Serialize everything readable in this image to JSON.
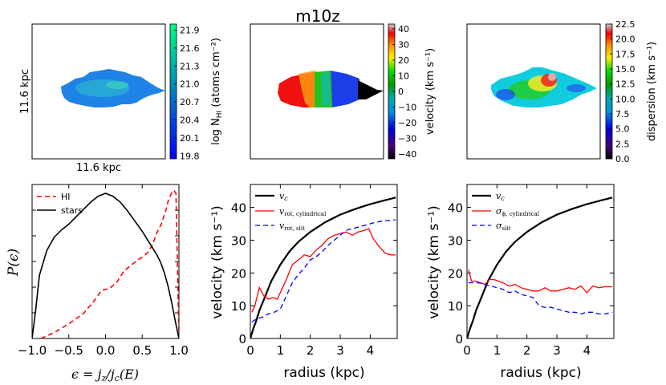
{
  "title": "m10z",
  "colors": {
    "hi_dashed": "#ff0000",
    "stars_line": "#000000",
    "vc_line": "#000000",
    "cyl_line": "#ff0000",
    "slit_line": "#0000ff"
  },
  "maps": [
    {
      "id": "column-density-map",
      "scale_x_label": "11.6 kpc",
      "scale_y_label": "11.6 kpc",
      "colorbar": {
        "label": "log N",
        "label_sub": "HI",
        "label_unit": " (atoms cm⁻²)",
        "colormap": "winter",
        "ticks": [
          "21.9",
          "21.6",
          "21.3",
          "21.0",
          "20.7",
          "20.4",
          "20.1",
          "19.8"
        ],
        "range": [
          19.75,
          22.0
        ]
      }
    },
    {
      "id": "velocity-map",
      "colorbar": {
        "label": "velocity (km s⁻¹)",
        "colormap": "spectral",
        "ticks": [
          "40",
          "30",
          "20",
          "10",
          "0",
          "−10",
          "−20",
          "−30",
          "−40"
        ],
        "range": [
          -43,
          43
        ]
      }
    },
    {
      "id": "dispersion-map",
      "colorbar": {
        "label": "dispersion (km s⁻¹)",
        "colormap": "spectral",
        "ticks": [
          "22.5",
          "20.0",
          "17.5",
          "15.0",
          "12.5",
          "10.0",
          "7.5",
          "5.0",
          "2.5",
          "0.0"
        ],
        "range": [
          0,
          22.5
        ]
      }
    }
  ],
  "chart_data": [
    {
      "type": "line",
      "id": "circularity-distribution",
      "xlabel": "ϵ = j_z/j_c(E)",
      "ylabel": "P(ϵ)",
      "xlim": [
        -1.0,
        1.0
      ],
      "ylim": [
        0,
        1.05
      ],
      "xticks": [
        "−1.0",
        "−0.5",
        "0.0",
        "0.5",
        "1.0"
      ],
      "legend_position": "top-left",
      "series": [
        {
          "name": "HI",
          "style": "dashed",
          "color": "#ff0000",
          "x": [
            -0.88,
            -0.7,
            -0.5,
            -0.3,
            -0.15,
            -0.05,
            0.05,
            0.15,
            0.25,
            0.35,
            0.45,
            0.52,
            0.58,
            0.64,
            0.7,
            0.76,
            0.82,
            0.86,
            0.9,
            0.93,
            0.96,
            1.0
          ],
          "values": [
            0.0,
            0.04,
            0.1,
            0.17,
            0.26,
            0.33,
            0.34,
            0.38,
            0.46,
            0.5,
            0.54,
            0.56,
            0.59,
            0.64,
            0.72,
            0.78,
            0.87,
            0.95,
            0.99,
            1.01,
            0.99,
            0.0
          ]
        },
        {
          "name": "stars",
          "style": "solid",
          "color": "#000000",
          "x": [
            -1.0,
            -0.95,
            -0.9,
            -0.8,
            -0.7,
            -0.6,
            -0.5,
            -0.4,
            -0.3,
            -0.2,
            -0.1,
            0.0,
            0.1,
            0.2,
            0.3,
            0.4,
            0.5,
            0.6,
            0.7,
            0.75,
            0.8,
            0.85,
            0.9,
            0.95,
            1.0
          ],
          "values": [
            0.0,
            0.2,
            0.43,
            0.6,
            0.69,
            0.74,
            0.78,
            0.83,
            0.88,
            0.93,
            0.97,
            0.99,
            0.97,
            0.93,
            0.87,
            0.8,
            0.73,
            0.65,
            0.57,
            0.52,
            0.45,
            0.36,
            0.25,
            0.12,
            0.0
          ]
        }
      ]
    },
    {
      "type": "line",
      "id": "rotation-curve",
      "xlabel": "radius (kpc)",
      "ylabel": "velocity (km s⁻¹)",
      "xlim": [
        0,
        4.9
      ],
      "ylim": [
        0,
        47
      ],
      "xticks": [
        "0",
        "1",
        "2",
        "3",
        "4"
      ],
      "yticks": [
        "0",
        "10",
        "20",
        "30",
        "40"
      ],
      "legend_position": "top-left",
      "series": [
        {
          "name": "v_c",
          "style": "solid",
          "color": "#000000",
          "x": [
            0,
            0.1,
            0.2,
            0.3,
            0.5,
            0.7,
            1.0,
            1.3,
            1.6,
            2.0,
            2.5,
            3.0,
            3.5,
            4.0,
            4.5,
            4.85
          ],
          "values": [
            0,
            3,
            5.5,
            8.5,
            13,
            17.5,
            22.5,
            26.5,
            29.5,
            32.5,
            35.5,
            37.8,
            39.5,
            41,
            42.2,
            43
          ]
        },
        {
          "name": "v_rot, cylindrical",
          "style": "solid",
          "color": "#ff0000",
          "x": [
            0.05,
            0.15,
            0.3,
            0.45,
            0.6,
            0.75,
            0.9,
            1.05,
            1.2,
            1.4,
            1.6,
            1.8,
            2.0,
            2.2,
            2.4,
            2.6,
            2.8,
            3.0,
            3.2,
            3.4,
            3.6,
            3.8,
            3.95,
            4.1,
            4.3,
            4.5,
            4.7,
            4.85
          ],
          "values": [
            8,
            10,
            15.5,
            13,
            12,
            12.5,
            12,
            15,
            18,
            22.5,
            24,
            25.5,
            25,
            27,
            28.5,
            30.5,
            31.5,
            32,
            32.5,
            31.5,
            32.5,
            33,
            33.5,
            30.5,
            28,
            26,
            25.5,
            25.5
          ]
        },
        {
          "name": "v_rot, slit",
          "style": "dashed",
          "color": "#0000ff",
          "x": [
            0.05,
            0.2,
            0.4,
            0.6,
            0.8,
            1.0,
            1.2,
            1.4,
            1.6,
            1.8,
            2.0,
            2.2,
            2.4,
            2.6,
            2.8,
            3.0,
            3.2,
            3.4,
            3.6,
            3.8,
            4.0,
            4.2,
            4.4,
            4.6,
            4.85
          ],
          "values": [
            5,
            6,
            6.5,
            7.5,
            8,
            9,
            13,
            17,
            19.5,
            21.5,
            24,
            25,
            26.5,
            28.5,
            30,
            31.5,
            33,
            33.5,
            34,
            34.5,
            35,
            35.5,
            35.8,
            36,
            36.2
          ]
        }
      ]
    },
    {
      "type": "line",
      "id": "dispersion-profile",
      "xlabel": "radius (kpc)",
      "ylabel": "velocity (km s⁻¹)",
      "xlim": [
        0,
        4.9
      ],
      "ylim": [
        0,
        47
      ],
      "xticks": [
        "0",
        "1",
        "2",
        "3",
        "4"
      ],
      "yticks": [
        "0",
        "10",
        "20",
        "30",
        "40"
      ],
      "legend_position": "top-left",
      "series": [
        {
          "name": "v_c",
          "style": "solid",
          "color": "#000000",
          "x": [
            0,
            0.1,
            0.2,
            0.3,
            0.5,
            0.7,
            1.0,
            1.3,
            1.6,
            2.0,
            2.5,
            3.0,
            3.5,
            4.0,
            4.5,
            4.85
          ],
          "values": [
            0,
            3,
            5.5,
            8.5,
            13,
            17.5,
            22.5,
            26.5,
            29.5,
            32.5,
            35.5,
            37.8,
            39.5,
            41,
            42.2,
            43
          ]
        },
        {
          "name": "σ_ϕ, cylindrical",
          "style": "solid",
          "color": "#ff0000",
          "x": [
            0.05,
            0.15,
            0.3,
            0.45,
            0.6,
            0.75,
            0.9,
            1.05,
            1.2,
            1.4,
            1.6,
            1.8,
            2.0,
            2.2,
            2.4,
            2.6,
            2.8,
            3.0,
            3.2,
            3.4,
            3.6,
            3.8,
            4.0,
            4.2,
            4.4,
            4.6,
            4.85
          ],
          "values": [
            21,
            17.5,
            17.5,
            17,
            16.5,
            18,
            18,
            17.5,
            17,
            16,
            16.5,
            15.5,
            15,
            14.5,
            14.5,
            15.5,
            14.5,
            14.5,
            15,
            15.5,
            15,
            16,
            14,
            16,
            15.5,
            15.8,
            15.8
          ]
        },
        {
          "name": "σ_slit",
          "style": "dashed",
          "color": "#0000ff",
          "x": [
            0.05,
            0.2,
            0.4,
            0.6,
            0.8,
            1.0,
            1.2,
            1.4,
            1.6,
            1.8,
            2.0,
            2.2,
            2.4,
            2.6,
            2.8,
            3.0,
            3.2,
            3.4,
            3.6,
            3.8,
            4.0,
            4.2,
            4.4,
            4.6,
            4.85
          ],
          "values": [
            17,
            17,
            17,
            16.5,
            16,
            15.5,
            15,
            14,
            14.5,
            13.5,
            13,
            12.5,
            10,
            9.5,
            9.5,
            9,
            8.5,
            8,
            8,
            7.5,
            8,
            8,
            7.5,
            7.5,
            8
          ]
        }
      ]
    }
  ]
}
